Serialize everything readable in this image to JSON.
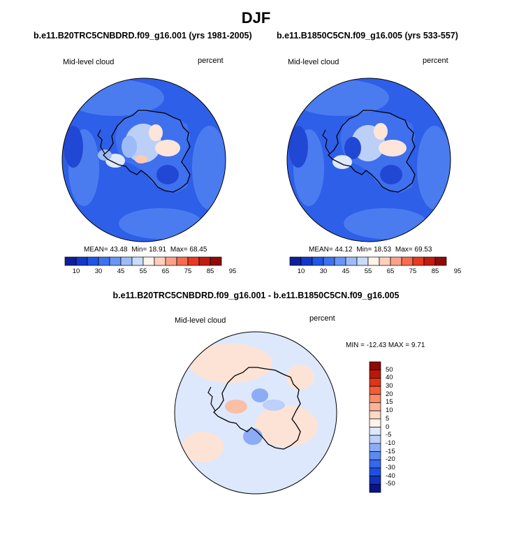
{
  "title": "DJF",
  "palettes": {
    "abs": [
      "#0d1f9b",
      "#1238c9",
      "#2156e6",
      "#3e72f0",
      "#6896f4",
      "#9dbcf7",
      "#c9dcfa",
      "#fff2ea",
      "#fed0bc",
      "#fca28a",
      "#f86d4f",
      "#e73a20",
      "#c11d0e",
      "#8e0b08"
    ],
    "diff": [
      "#0a1387",
      "#1030bf",
      "#1e4fe0",
      "#3568ec",
      "#5c8af1",
      "#8cadf5",
      "#bcd0f9",
      "#dde8fd",
      "#fff3ec",
      "#fed9c5",
      "#fdb49a",
      "#fa8a68",
      "#f45b37",
      "#de3518",
      "#b8170a",
      "#8b0a06"
    ]
  },
  "chart_data": [
    {
      "type": "heatmap",
      "title": "b.e11.B20TRC5CNBDRD.f09_g16.001 (yrs 1981-2005)",
      "left_label": "Mid-level cloud",
      "right_label": "percent",
      "stats": {
        "mean_label": "MEAN=",
        "mean": "43.48",
        "min_label": "Min=",
        "min": "18.91",
        "max_label": "Max=",
        "max": "68.45"
      },
      "colorbar_ticks": [
        "10",
        "30",
        "45",
        "55",
        "65",
        "75",
        "85",
        "95"
      ],
      "colorbar_levels": 14
    },
    {
      "type": "heatmap",
      "title": "b.e11.B1850C5CN.f09_g16.005 (yrs 533-557)",
      "left_label": "Mid-level cloud",
      "right_label": "percent",
      "stats": {
        "mean_label": "MEAN=",
        "mean": "44.12",
        "min_label": "Min=",
        "min": "18.53",
        "max_label": "Max=",
        "max": "69.53"
      },
      "colorbar_ticks": [
        "10",
        "30",
        "45",
        "55",
        "65",
        "75",
        "85",
        "95"
      ],
      "colorbar_levels": 14
    },
    {
      "type": "heatmap",
      "title": "b.e11.B20TRC5CNBDRD.f09_g16.001 - b.e11.B1850C5CN.f09_g16.005",
      "left_label": "Mid-level cloud",
      "right_label": "percent",
      "stats_text": "MIN = -12.43 MAX =   9.71",
      "colorbar_ticks": [
        "50",
        "40",
        "30",
        "20",
        "15",
        "10",
        "5",
        "0",
        "-5",
        "-10",
        "-15",
        "-20",
        "-30",
        "-40",
        "-50"
      ],
      "colorbar_levels": 16
    }
  ]
}
